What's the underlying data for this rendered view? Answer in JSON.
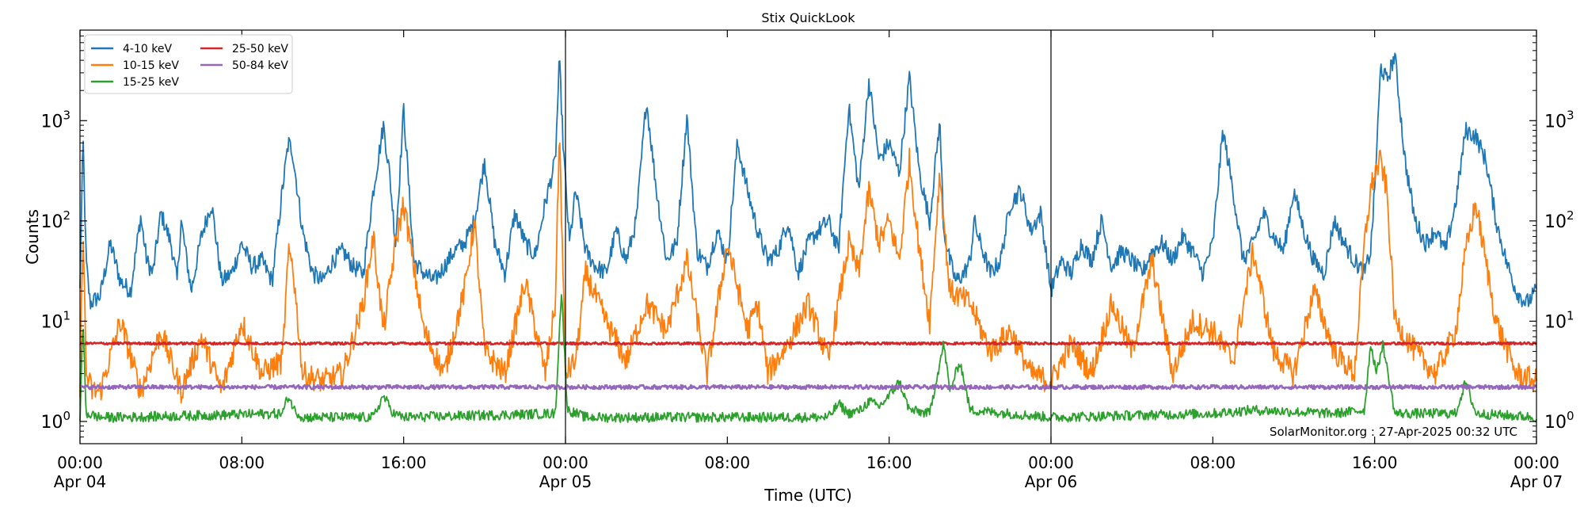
{
  "chart_data": {
    "type": "line",
    "title": "Stix QuickLook",
    "xlabel": "Time (UTC)",
    "ylabel": "Counts",
    "yscale": "log",
    "ylim": [
      0.6,
      8000
    ],
    "xlim_hours": [
      0,
      72
    ],
    "day_separators_hours": [
      24,
      48
    ],
    "y_ticks": [
      {
        "value": 1,
        "base": "10",
        "exp": "0"
      },
      {
        "value": 10,
        "base": "10",
        "exp": "1"
      },
      {
        "value": 100,
        "base": "10",
        "exp": "2"
      },
      {
        "value": 1000,
        "base": "10",
        "exp": "3"
      }
    ],
    "x_ticks": [
      {
        "hour": 0,
        "time": "00:00",
        "date": "Apr 04"
      },
      {
        "hour": 8,
        "time": "08:00",
        "date": ""
      },
      {
        "hour": 16,
        "time": "16:00",
        "date": ""
      },
      {
        "hour": 24,
        "time": "00:00",
        "date": "Apr 05"
      },
      {
        "hour": 32,
        "time": "08:00",
        "date": ""
      },
      {
        "hour": 40,
        "time": "16:00",
        "date": ""
      },
      {
        "hour": 48,
        "time": "00:00",
        "date": "Apr 06"
      },
      {
        "hour": 56,
        "time": "08:00",
        "date": ""
      },
      {
        "hour": 64,
        "time": "16:00",
        "date": ""
      },
      {
        "hour": 72,
        "time": "00:00",
        "date": "Apr 07"
      }
    ],
    "legend_position": "top-left",
    "series": [
      {
        "name": "4-10 keV",
        "color": "#1f77b4",
        "x": [
          0,
          0.15,
          0.3,
          0.5,
          1,
          1.5,
          2,
          2.5,
          3,
          3.3,
          3.6,
          4,
          4.5,
          4.8,
          5,
          5.5,
          6,
          6.5,
          7,
          7.5,
          8,
          8.5,
          9,
          9.5,
          10,
          10.3,
          10.5,
          11,
          11.5,
          12,
          12.5,
          13,
          13.5,
          14,
          14.5,
          15,
          15.3,
          15.6,
          16,
          16.5,
          17,
          17.5,
          18,
          18.5,
          19,
          19.5,
          20,
          20.5,
          21,
          21.5,
          22,
          22.5,
          23,
          23.5,
          23.7,
          23.9,
          24.2,
          24.5,
          25,
          25.5,
          26,
          26.5,
          27,
          27.5,
          28,
          28.5,
          29,
          29.5,
          30,
          30.5,
          31,
          31.5,
          32,
          32.5,
          33,
          33.5,
          34,
          34.5,
          35,
          35.5,
          36,
          36.5,
          37,
          37.5,
          38,
          38.5,
          39,
          39.5,
          40,
          40.5,
          41,
          41.5,
          42,
          42.5,
          42.7,
          43,
          43.3,
          43.7,
          44,
          44.2,
          44.5,
          45,
          45.5,
          46,
          46.5,
          47,
          47.5,
          48,
          48.5,
          49,
          49.5,
          50,
          50.5,
          51,
          51.5,
          52,
          52.5,
          53,
          53.5,
          54,
          54.5,
          55,
          55.5,
          56,
          56.5,
          57,
          57.5,
          58,
          58.5,
          59,
          59.5,
          60,
          60.5,
          61,
          61.5,
          62,
          62.5,
          63,
          63.5,
          63.8,
          64,
          64.3,
          64.6,
          65,
          65.5,
          66,
          66.5,
          67,
          67.5,
          68,
          68.5,
          69,
          69.5,
          70,
          70.5,
          71,
          71.5,
          72
        ],
        "values": [
          20,
          700,
          40,
          15,
          18,
          60,
          25,
          20,
          110,
          40,
          30,
          120,
          60,
          25,
          100,
          20,
          70,
          150,
          25,
          30,
          60,
          35,
          40,
          25,
          200,
          600,
          500,
          80,
          30,
          25,
          40,
          50,
          35,
          30,
          200,
          900,
          300,
          60,
          1300,
          40,
          30,
          25,
          35,
          50,
          60,
          100,
          400,
          60,
          30,
          120,
          60,
          45,
          150,
          400,
          4000,
          500,
          60,
          200,
          50,
          35,
          30,
          80,
          40,
          100,
          1600,
          200,
          40,
          60,
          1100,
          50,
          35,
          80,
          40,
          600,
          200,
          80,
          40,
          50,
          100,
          30,
          60,
          80,
          100,
          50,
          1400,
          200,
          2500,
          400,
          600,
          300,
          2700,
          300,
          100,
          1000,
          80,
          40,
          25,
          30,
          40,
          100,
          60,
          30,
          40,
          150,
          200,
          80,
          120,
          20,
          40,
          30,
          60,
          40,
          100,
          35,
          50,
          40,
          30,
          50,
          60,
          40,
          70,
          50,
          30,
          60,
          800,
          200,
          40,
          60,
          120,
          70,
          50,
          200,
          80,
          40,
          30,
          100,
          60,
          40,
          30,
          50,
          200,
          3500,
          2500,
          4500,
          400,
          100,
          60,
          80,
          50,
          150,
          800,
          700,
          400,
          100,
          40,
          20,
          15,
          20
        ],
        "baseline": 20
      },
      {
        "name": "10-15 keV",
        "color": "#ff7f0e",
        "x": [
          0,
          0.15,
          0.3,
          0.6,
          1,
          2,
          3,
          4,
          5,
          6,
          7,
          8,
          9,
          10,
          10.3,
          10.5,
          11,
          12,
          13,
          14,
          14.5,
          15,
          15.6,
          16,
          17,
          18,
          19,
          19.5,
          20,
          21,
          22,
          23,
          23.5,
          23.7,
          24,
          24.5,
          25,
          26,
          27,
          28,
          29,
          30,
          31,
          32,
          33,
          33.5,
          34,
          35,
          36,
          37,
          38,
          38.5,
          39,
          39.5,
          40,
          40.5,
          41,
          41.5,
          42,
          42.5,
          43,
          44,
          45,
          46,
          47,
          48,
          49,
          50,
          51,
          52,
          53,
          54,
          55,
          56,
          57,
          58,
          59,
          60,
          61,
          62,
          63,
          63.5,
          63.8,
          64,
          64.3,
          64.6,
          65,
          66,
          67,
          68,
          68.5,
          69,
          70,
          71,
          72
        ],
        "values": [
          2,
          100,
          3,
          2,
          2,
          10,
          2,
          8,
          2,
          7,
          2,
          10,
          3,
          4,
          45,
          40,
          3,
          2.5,
          3,
          15,
          70,
          8,
          60,
          150,
          8,
          3,
          20,
          100,
          5,
          3,
          25,
          3,
          15,
          800,
          3,
          4,
          30,
          10,
          4,
          15,
          8,
          40,
          3,
          60,
          8,
          15,
          3,
          6,
          15,
          4,
          60,
          30,
          200,
          60,
          100,
          40,
          400,
          50,
          10,
          300,
          20,
          15,
          5,
          8,
          3,
          2.5,
          6,
          3,
          15,
          5,
          40,
          3,
          10,
          8,
          4,
          50,
          5,
          3,
          20,
          5,
          3,
          60,
          200,
          300,
          400,
          200,
          10,
          5,
          3,
          8,
          50,
          150,
          10,
          3,
          2.5
        ],
        "baseline": 2
      },
      {
        "name": "15-25 keV",
        "color": "#2ca02c",
        "x": [
          0,
          0.15,
          0.3,
          1,
          2,
          10,
          10.3,
          10.6,
          11,
          14.5,
          15,
          15.5,
          16,
          23.5,
          23.8,
          24.1,
          25,
          37,
          37.5,
          38,
          38.6,
          39,
          39.5,
          40,
          40.5,
          41,
          42,
          42.7,
          43,
          43.5,
          44,
          48,
          56,
          58,
          62,
          63.5,
          63.8,
          64.1,
          64.4,
          65,
          68,
          68.5,
          69,
          72
        ],
        "values": [
          1.1,
          10,
          1.2,
          1.1,
          1.1,
          1.2,
          1.8,
          1.3,
          1.1,
          1.1,
          1.8,
          1.2,
          1.1,
          1.2,
          20,
          1.3,
          1.1,
          1.1,
          1.5,
          1.2,
          1.3,
          1.6,
          1.4,
          1.8,
          2.5,
          1.3,
          1.2,
          6,
          2,
          4,
          1.3,
          1.1,
          1.2,
          1.3,
          1.2,
          1.3,
          6,
          3,
          6,
          1.2,
          1.2,
          2.5,
          1.2,
          1.1
        ],
        "baseline": 1.1
      },
      {
        "name": "25-50 keV",
        "color": "#d62728",
        "x": [
          0,
          72
        ],
        "values": [
          6,
          6
        ],
        "baseline": 6
      },
      {
        "name": "50-84 keV",
        "color": "#9467bd",
        "x": [
          0,
          72
        ],
        "values": [
          2.2,
          2.2
        ],
        "baseline": 2.2
      }
    ]
  },
  "watermark": "SolarMonitor.org : 27-Apr-2025 00:32 UTC"
}
